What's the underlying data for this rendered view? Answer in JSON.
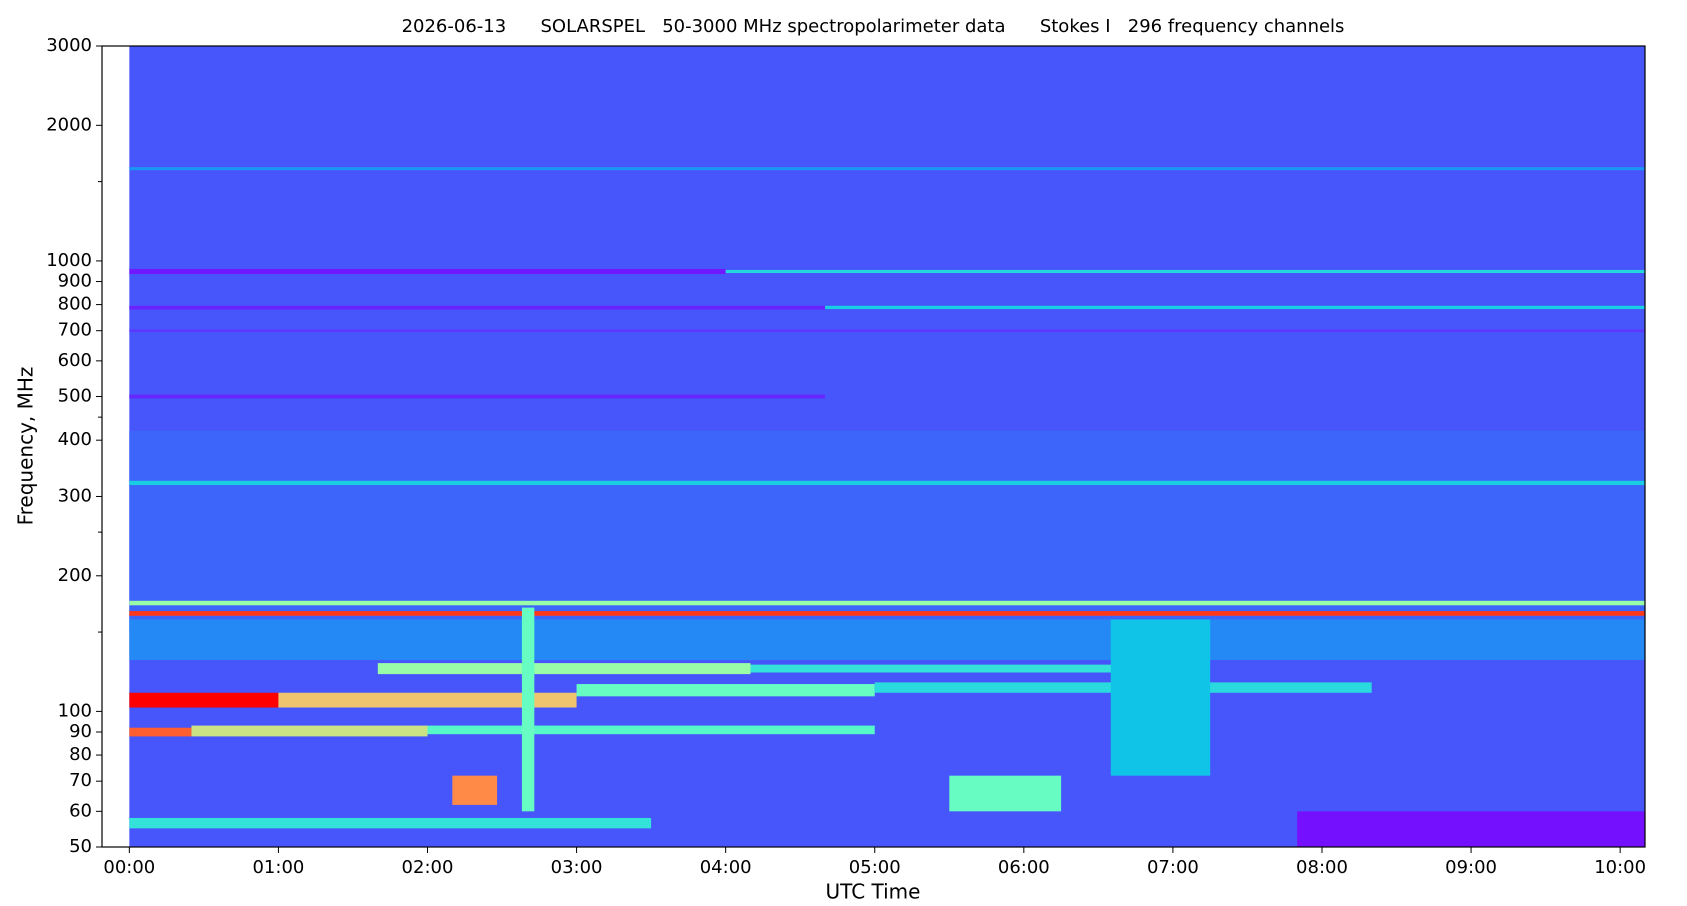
{
  "chart_data": {
    "type": "spectrogram",
    "title": "2026-06-13      SOLARSPEL   50-3000 MHz spectropolarimeter data      Stokes I   296 frequency channels",
    "xlabel": "UTC Time",
    "ylabel": "Frequency, MHz",
    "ylog": true,
    "colormap": "rainbow",
    "xlim": [
      -11,
      610
    ],
    "xticks": [
      {
        "value": 0,
        "label": "00:00"
      },
      {
        "value": 60,
        "label": "01:00"
      },
      {
        "value": 120,
        "label": "02:00"
      },
      {
        "value": 180,
        "label": "03:00"
      },
      {
        "value": 240,
        "label": "04:00"
      },
      {
        "value": 300,
        "label": "05:00"
      },
      {
        "value": 360,
        "label": "06:00"
      },
      {
        "value": 420,
        "label": "07:00"
      },
      {
        "value": 480,
        "label": "08:00"
      },
      {
        "value": 540,
        "label": "09:00"
      },
      {
        "value": 600,
        "label": "10:00"
      }
    ],
    "ylim": [
      50,
      3000
    ],
    "yticks": [
      3000,
      2000,
      1000,
      900,
      800,
      700,
      600,
      500,
      400,
      300,
      200,
      100,
      90,
      80,
      70,
      60,
      50
    ],
    "yminorticks": [
      1500,
      450,
      250,
      150
    ],
    "features": [
      {
        "t0": 0,
        "t1": 610,
        "f0": 50,
        "f1": 3000,
        "level": 0.11
      },
      {
        "t0": 0,
        "t1": 610,
        "f0": 150,
        "f1": 420,
        "level": 0.13
      },
      {
        "t0": 0,
        "t1": 610,
        "f0": 1590,
        "f1": 1615,
        "level": 0.2
      },
      {
        "t0": 0,
        "t1": 240,
        "f0": 935,
        "f1": 960,
        "level": 0.03
      },
      {
        "t0": 240,
        "t1": 610,
        "f0": 940,
        "f1": 955,
        "level": 0.32
      },
      {
        "t0": 0,
        "t1": 280,
        "f0": 780,
        "f1": 795,
        "level": 0.04
      },
      {
        "t0": 280,
        "t1": 610,
        "f0": 782,
        "f1": 795,
        "level": 0.3
      },
      {
        "t0": 0,
        "t1": 610,
        "f0": 695,
        "f1": 705,
        "level": 0.07
      },
      {
        "t0": 0,
        "t1": 280,
        "f0": 495,
        "f1": 505,
        "level": 0.05
      },
      {
        "t0": 0,
        "t1": 610,
        "f0": 318,
        "f1": 325,
        "level": 0.3
      },
      {
        "t0": 0,
        "t1": 610,
        "f0": 172,
        "f1": 176,
        "level": 0.55
      },
      {
        "t0": 0,
        "t1": 610,
        "f0": 163,
        "f1": 167,
        "level": 0.93
      },
      {
        "t0": 0,
        "t1": 610,
        "f0": 130,
        "f1": 160,
        "level": 0.18
      },
      {
        "t0": 100,
        "t1": 250,
        "f0": 121,
        "f1": 128,
        "level": 0.55
      },
      {
        "t0": 250,
        "t1": 420,
        "f0": 122,
        "f1": 127,
        "level": 0.35
      },
      {
        "t0": 0,
        "t1": 60,
        "f0": 102,
        "f1": 110,
        "level": 1.0
      },
      {
        "t0": 60,
        "t1": 180,
        "f0": 102,
        "f1": 110,
        "level": 0.72
      },
      {
        "t0": 180,
        "t1": 300,
        "f0": 108,
        "f1": 115,
        "level": 0.45
      },
      {
        "t0": 300,
        "t1": 500,
        "f0": 110,
        "f1": 116,
        "level": 0.33
      },
      {
        "t0": 0,
        "t1": 25,
        "f0": 88,
        "f1": 92,
        "level": 0.88
      },
      {
        "t0": 25,
        "t1": 120,
        "f0": 88,
        "f1": 93,
        "level": 0.65
      },
      {
        "t0": 120,
        "t1": 300,
        "f0": 89,
        "f1": 93,
        "level": 0.42
      },
      {
        "t0": 0,
        "t1": 210,
        "f0": 55,
        "f1": 58,
        "level": 0.35
      },
      {
        "t0": 130,
        "t1": 148,
        "f0": 62,
        "f1": 72,
        "level": 0.82
      },
      {
        "t0": 330,
        "t1": 375,
        "f0": 60,
        "f1": 72,
        "level": 0.45
      },
      {
        "t0": 158,
        "t1": 163,
        "f0": 60,
        "f1": 170,
        "level": 0.45
      },
      {
        "t0": 395,
        "t1": 435,
        "f0": 72,
        "f1": 160,
        "level": 0.28
      },
      {
        "t0": 470,
        "t1": 610,
        "f0": 50,
        "f1": 60,
        "level": 0.02
      }
    ]
  }
}
